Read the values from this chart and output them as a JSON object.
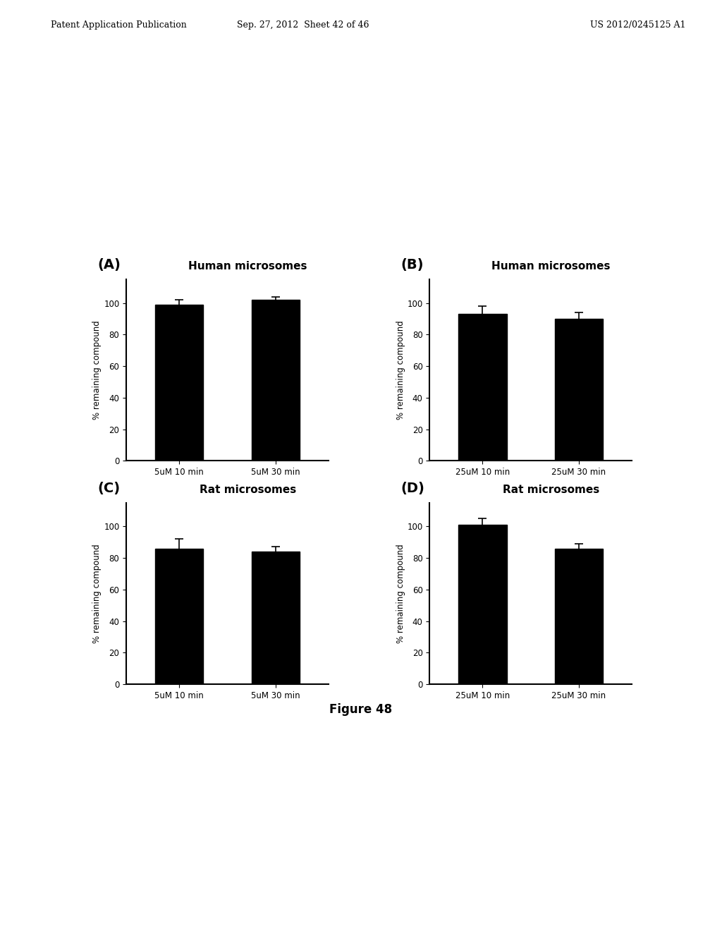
{
  "subplots": [
    {
      "label": "(A)",
      "title": "Human microsomes",
      "categories": [
        "5uM 10 min",
        "5uM 30 min"
      ],
      "values": [
        99,
        102
      ],
      "errors": [
        3,
        2
      ],
      "ylim": [
        0,
        115
      ],
      "yticks": [
        0,
        20,
        40,
        60,
        80,
        100
      ]
    },
    {
      "label": "(B)",
      "title": "Human microsomes",
      "categories": [
        "25uM 10 min",
        "25uM 30 min"
      ],
      "values": [
        93,
        90
      ],
      "errors": [
        5,
        4
      ],
      "ylim": [
        0,
        115
      ],
      "yticks": [
        0,
        20,
        40,
        60,
        80,
        100
      ]
    },
    {
      "label": "(C)",
      "title": "Rat microsomes",
      "categories": [
        "5uM 10 min",
        "5uM 30 min"
      ],
      "values": [
        86,
        84
      ],
      "errors": [
        6,
        3
      ],
      "ylim": [
        0,
        115
      ],
      "yticks": [
        0,
        20,
        40,
        60,
        80,
        100
      ]
    },
    {
      "label": "(D)",
      "title": "Rat microsomes",
      "categories": [
        "25uM 10 min",
        "25uM 30 min"
      ],
      "values": [
        101,
        86
      ],
      "errors": [
        4,
        3
      ],
      "ylim": [
        0,
        115
      ],
      "yticks": [
        0,
        20,
        40,
        60,
        80,
        100
      ]
    }
  ],
  "bar_color": "#000000",
  "bar_width": 0.5,
  "ylabel": "% remaining compound",
  "background_color": "#ffffff",
  "figure_title": "Figure 48",
  "header_left": "Patent Application Publication",
  "header_center": "Sep. 27, 2012  Sheet 42 of 46",
  "header_right": "US 2012/0245125 A1"
}
